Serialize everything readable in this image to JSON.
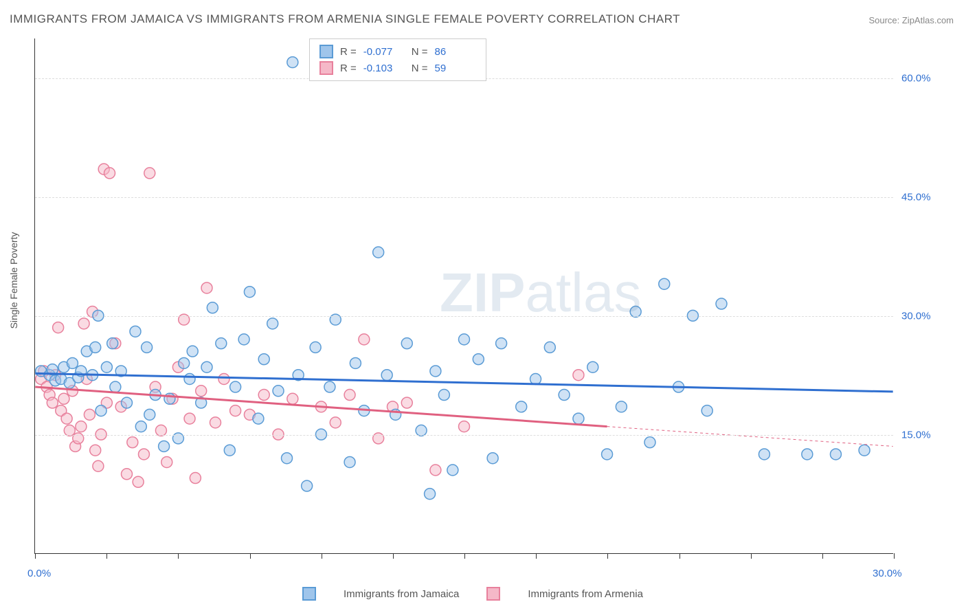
{
  "title": "IMMIGRANTS FROM JAMAICA VS IMMIGRANTS FROM ARMENIA SINGLE FEMALE POVERTY CORRELATION CHART",
  "source": "Source: ZipAtlas.com",
  "watermark": "ZIPatlas",
  "y_axis_label": "Single Female Poverty",
  "chart": {
    "type": "scatter",
    "xlim": [
      0.0,
      30.0
    ],
    "ylim": [
      0.0,
      65.0
    ],
    "y_ticks": [
      15.0,
      30.0,
      45.0,
      60.0
    ],
    "y_tick_labels": [
      "15.0%",
      "30.0%",
      "45.0%",
      "60.0%"
    ],
    "x_minor_ticks": [
      0.0,
      2.5,
      5.0,
      7.5,
      10.0,
      12.5,
      15.0,
      17.5,
      20.0,
      22.5,
      25.0,
      27.5,
      30.0
    ],
    "x_lim_labels": {
      "left": "0.0%",
      "right": "30.0%"
    },
    "background_color": "#ffffff",
    "grid_color": "#dddddd",
    "marker_radius": 8,
    "marker_opacity": 0.5,
    "line_width": 3
  },
  "series": [
    {
      "id": "jamaica",
      "label": "Immigrants from Jamaica",
      "color_fill": "#9fc5eb",
      "color_stroke": "#5a9bd5",
      "line_color": "#2f6fd0",
      "R": "-0.077",
      "N": "86",
      "trend": {
        "x1": 0.0,
        "y1": 22.7,
        "x2": 30.0,
        "y2": 20.4
      },
      "trend_dashed": null,
      "points": [
        [
          0.2,
          23.0
        ],
        [
          0.5,
          22.5
        ],
        [
          0.6,
          23.2
        ],
        [
          0.7,
          21.8
        ],
        [
          0.9,
          22.0
        ],
        [
          1.0,
          23.5
        ],
        [
          1.2,
          21.5
        ],
        [
          1.3,
          24.0
        ],
        [
          1.5,
          22.2
        ],
        [
          1.6,
          23.0
        ],
        [
          1.8,
          25.5
        ],
        [
          2.0,
          22.5
        ],
        [
          2.1,
          26.0
        ],
        [
          2.2,
          30.0
        ],
        [
          2.3,
          18.0
        ],
        [
          2.5,
          23.5
        ],
        [
          2.7,
          26.5
        ],
        [
          2.8,
          21.0
        ],
        [
          3.0,
          23.0
        ],
        [
          3.2,
          19.0
        ],
        [
          3.5,
          28.0
        ],
        [
          3.7,
          16.0
        ],
        [
          3.9,
          26.0
        ],
        [
          4.0,
          17.5
        ],
        [
          4.2,
          20.0
        ],
        [
          4.5,
          13.5
        ],
        [
          4.7,
          19.5
        ],
        [
          5.0,
          14.5
        ],
        [
          5.2,
          24.0
        ],
        [
          5.4,
          22.0
        ],
        [
          5.5,
          25.5
        ],
        [
          5.8,
          19.0
        ],
        [
          6.0,
          23.5
        ],
        [
          6.2,
          31.0
        ],
        [
          6.5,
          26.5
        ],
        [
          6.8,
          13.0
        ],
        [
          7.0,
          21.0
        ],
        [
          7.3,
          27.0
        ],
        [
          7.5,
          33.0
        ],
        [
          7.8,
          17.0
        ],
        [
          8.0,
          24.5
        ],
        [
          8.3,
          29.0
        ],
        [
          8.5,
          20.5
        ],
        [
          8.8,
          12.0
        ],
        [
          9.0,
          62.0
        ],
        [
          9.2,
          22.5
        ],
        [
          9.5,
          8.5
        ],
        [
          9.8,
          26.0
        ],
        [
          10.0,
          15.0
        ],
        [
          10.3,
          21.0
        ],
        [
          10.5,
          29.5
        ],
        [
          11.0,
          11.5
        ],
        [
          11.2,
          24.0
        ],
        [
          11.5,
          18.0
        ],
        [
          12.0,
          38.0
        ],
        [
          12.3,
          22.5
        ],
        [
          12.6,
          17.5
        ],
        [
          13.0,
          26.5
        ],
        [
          13.5,
          15.5
        ],
        [
          13.8,
          7.5
        ],
        [
          14.0,
          23.0
        ],
        [
          14.3,
          20.0
        ],
        [
          14.6,
          10.5
        ],
        [
          15.0,
          27.0
        ],
        [
          15.5,
          24.5
        ],
        [
          16.0,
          12.0
        ],
        [
          16.3,
          26.5
        ],
        [
          17.0,
          18.5
        ],
        [
          17.5,
          22.0
        ],
        [
          18.0,
          26.0
        ],
        [
          18.5,
          20.0
        ],
        [
          19.0,
          17.0
        ],
        [
          19.5,
          23.5
        ],
        [
          20.0,
          12.5
        ],
        [
          20.5,
          18.5
        ],
        [
          21.0,
          30.5
        ],
        [
          21.5,
          14.0
        ],
        [
          22.0,
          34.0
        ],
        [
          22.5,
          21.0
        ],
        [
          23.0,
          30.0
        ],
        [
          23.5,
          18.0
        ],
        [
          24.0,
          31.5
        ],
        [
          25.5,
          12.5
        ],
        [
          27.0,
          12.5
        ],
        [
          28.0,
          12.5
        ],
        [
          29.0,
          13.0
        ]
      ]
    },
    {
      "id": "armenia",
      "label": "Immigrants from Armenia",
      "color_fill": "#f5b8c8",
      "color_stroke": "#e8809c",
      "line_color": "#e06080",
      "R": "-0.103",
      "N": "59",
      "trend": {
        "x1": 0.0,
        "y1": 21.0,
        "x2": 20.0,
        "y2": 16.0
      },
      "trend_dashed": {
        "x1": 20.0,
        "y1": 16.0,
        "x2": 30.0,
        "y2": 13.5
      },
      "points": [
        [
          0.2,
          22.0
        ],
        [
          0.3,
          23.0
        ],
        [
          0.4,
          21.0
        ],
        [
          0.5,
          20.0
        ],
        [
          0.6,
          19.0
        ],
        [
          0.7,
          22.5
        ],
        [
          0.8,
          28.5
        ],
        [
          0.9,
          18.0
        ],
        [
          1.0,
          19.5
        ],
        [
          1.1,
          17.0
        ],
        [
          1.2,
          15.5
        ],
        [
          1.3,
          20.5
        ],
        [
          1.4,
          13.5
        ],
        [
          1.5,
          14.5
        ],
        [
          1.6,
          16.0
        ],
        [
          1.7,
          29.0
        ],
        [
          1.8,
          22.0
        ],
        [
          1.9,
          17.5
        ],
        [
          2.0,
          30.5
        ],
        [
          2.1,
          13.0
        ],
        [
          2.2,
          11.0
        ],
        [
          2.3,
          15.0
        ],
        [
          2.4,
          48.5
        ],
        [
          2.5,
          19.0
        ],
        [
          2.6,
          48.0
        ],
        [
          2.8,
          26.5
        ],
        [
          3.0,
          18.5
        ],
        [
          3.2,
          10.0
        ],
        [
          3.4,
          14.0
        ],
        [
          3.6,
          9.0
        ],
        [
          3.8,
          12.5
        ],
        [
          4.0,
          48.0
        ],
        [
          4.2,
          21.0
        ],
        [
          4.4,
          15.5
        ],
        [
          4.6,
          11.5
        ],
        [
          4.8,
          19.5
        ],
        [
          5.0,
          23.5
        ],
        [
          5.2,
          29.5
        ],
        [
          5.4,
          17.0
        ],
        [
          5.6,
          9.5
        ],
        [
          5.8,
          20.5
        ],
        [
          6.0,
          33.5
        ],
        [
          6.3,
          16.5
        ],
        [
          6.6,
          22.0
        ],
        [
          7.0,
          18.0
        ],
        [
          7.5,
          17.5
        ],
        [
          8.0,
          20.0
        ],
        [
          8.5,
          15.0
        ],
        [
          9.0,
          19.5
        ],
        [
          10.0,
          18.5
        ],
        [
          10.5,
          16.5
        ],
        [
          11.0,
          20.0
        ],
        [
          11.5,
          27.0
        ],
        [
          12.0,
          14.5
        ],
        [
          12.5,
          18.5
        ],
        [
          13.0,
          19.0
        ],
        [
          14.0,
          10.5
        ],
        [
          15.0,
          16.0
        ],
        [
          19.0,
          22.5
        ]
      ]
    }
  ],
  "stats_labels": {
    "R": "R =",
    "N": "N ="
  },
  "legend_labels": {
    "jamaica": "Immigrants from Jamaica",
    "armenia": "Immigrants from Armenia"
  }
}
